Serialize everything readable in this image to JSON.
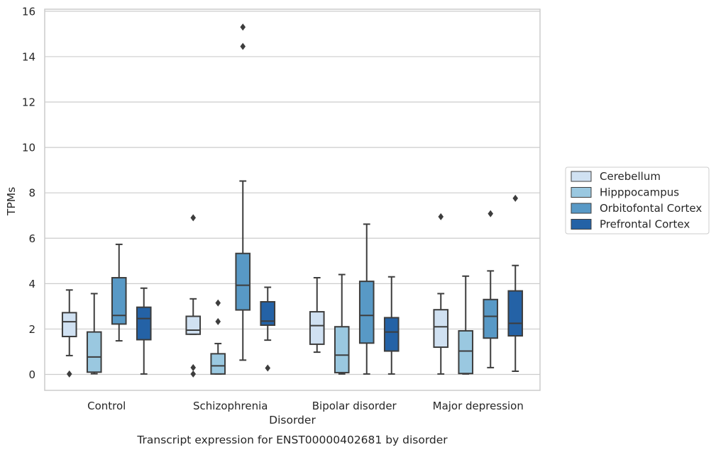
{
  "chart_data": {
    "type": "box",
    "caption": "Transcript expression for ENST00000402681 by disorder",
    "xlabel": "Disorder",
    "ylabel": "TPMs",
    "ylim": [
      -0.7,
      16.1
    ],
    "yticks": [
      0,
      2,
      4,
      6,
      8,
      10,
      12,
      14,
      16
    ],
    "grid": "horizontal",
    "legend_position": "right",
    "categories": [
      "Control",
      "Schizophrenia",
      "Bipolar disorder",
      "Major depression"
    ],
    "series": [
      {
        "name": "Cerebellum",
        "color": "#d0e1f2",
        "boxes": [
          {
            "whislo": 0.83,
            "q1": 1.67,
            "med": 2.32,
            "q3": 2.72,
            "whishi": 3.72,
            "fliers": [
              0.02
            ]
          },
          {
            "whislo": 1.77,
            "q1": 1.77,
            "med": 1.95,
            "q3": 2.56,
            "whishi": 3.33,
            "fliers": [
              6.9,
              0.3,
              0.02
            ]
          },
          {
            "whislo": 0.98,
            "q1": 1.33,
            "med": 2.15,
            "q3": 2.76,
            "whishi": 4.26,
            "fliers": []
          },
          {
            "whislo": 0.02,
            "q1": 1.2,
            "med": 2.1,
            "q3": 2.85,
            "whishi": 3.56,
            "fliers": [
              6.95
            ]
          }
        ]
      },
      {
        "name": "Hipppocampus",
        "color": "#9ac8e0",
        "boxes": [
          {
            "whislo": 0.03,
            "q1": 0.1,
            "med": 0.77,
            "q3": 1.87,
            "whishi": 3.56,
            "fliers": []
          },
          {
            "whislo": 0.02,
            "q1": 0.02,
            "med": 0.38,
            "q3": 0.91,
            "whishi": 1.36,
            "fliers": [
              3.15,
              2.33
            ]
          },
          {
            "whislo": 0.02,
            "q1": 0.08,
            "med": 0.85,
            "q3": 2.1,
            "whishi": 4.4,
            "fliers": []
          },
          {
            "whislo": 0.02,
            "q1": 0.04,
            "med": 1.03,
            "q3": 1.92,
            "whishi": 4.33,
            "fliers": []
          }
        ]
      },
      {
        "name": "Orbitofontal Cortex",
        "color": "#5899c6",
        "boxes": [
          {
            "whislo": 1.48,
            "q1": 2.22,
            "med": 2.6,
            "q3": 4.26,
            "whishi": 5.73,
            "fliers": []
          },
          {
            "whislo": 0.63,
            "q1": 2.84,
            "med": 3.93,
            "q3": 5.33,
            "whishi": 8.52,
            "fliers": [
              15.3,
              14.45
            ]
          },
          {
            "whislo": 0.02,
            "q1": 1.38,
            "med": 2.6,
            "q3": 4.1,
            "whishi": 6.62,
            "fliers": []
          },
          {
            "whislo": 0.3,
            "q1": 1.6,
            "med": 2.56,
            "q3": 3.3,
            "whishi": 4.56,
            "fliers": [
              7.08
            ]
          }
        ]
      },
      {
        "name": "Prefrontal Cortex",
        "color": "#2462a6",
        "boxes": [
          {
            "whislo": 0.02,
            "q1": 1.53,
            "med": 2.46,
            "q3": 2.96,
            "whishi": 3.8,
            "fliers": []
          },
          {
            "whislo": 1.51,
            "q1": 2.17,
            "med": 2.35,
            "q3": 3.2,
            "whishi": 3.84,
            "fliers": [
              0.28
            ]
          },
          {
            "whislo": 0.02,
            "q1": 1.03,
            "med": 1.87,
            "q3": 2.5,
            "whishi": 4.3,
            "fliers": []
          },
          {
            "whislo": 0.14,
            "q1": 1.7,
            "med": 2.25,
            "q3": 3.68,
            "whishi": 4.8,
            "fliers": [
              7.76
            ]
          }
        ]
      }
    ]
  }
}
